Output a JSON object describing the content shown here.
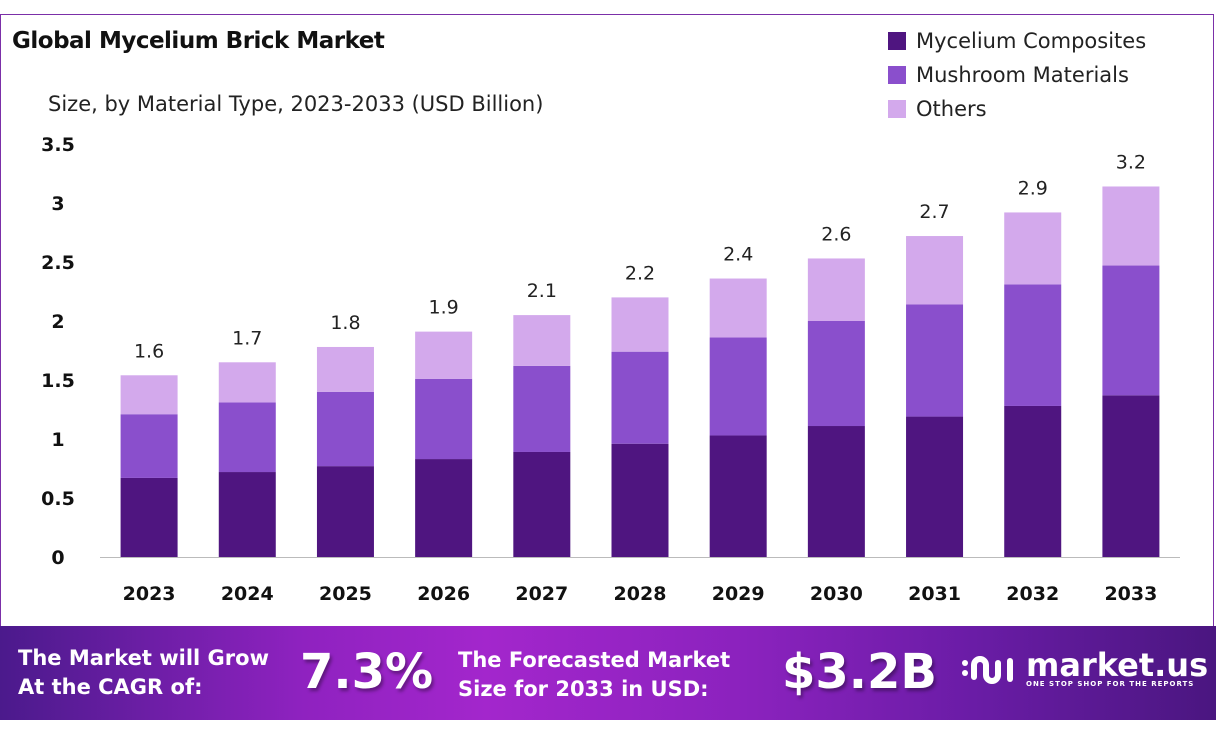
{
  "chart_data": {
    "type": "bar",
    "stacked": true,
    "title": "Global Mycelium Brick Market",
    "subtitle": "Size, by Material Type, 2023-2033 (USD Billion)",
    "categories": [
      "2023",
      "2024",
      "2025",
      "2026",
      "2027",
      "2028",
      "2029",
      "2030",
      "2031",
      "2032",
      "2033"
    ],
    "series": [
      {
        "name": "Mycelium Composites",
        "color": "#4f1580",
        "values": [
          0.67,
          0.72,
          0.77,
          0.83,
          0.89,
          0.96,
          1.03,
          1.11,
          1.19,
          1.28,
          1.37
        ]
      },
      {
        "name": "Mushroom Materials",
        "color": "#8a4fcc",
        "values": [
          0.54,
          0.59,
          0.63,
          0.68,
          0.73,
          0.78,
          0.83,
          0.89,
          0.95,
          1.03,
          1.1
        ]
      },
      {
        "name": "Others",
        "color": "#d3a9ec",
        "values": [
          0.33,
          0.34,
          0.38,
          0.4,
          0.43,
          0.46,
          0.5,
          0.53,
          0.58,
          0.61,
          0.67
        ]
      }
    ],
    "totals_labels": [
      "1.6",
      "1.7",
      "1.8",
      "1.9",
      "2.1",
      "2.2",
      "2.4",
      "2.6",
      "2.7",
      "2.9",
      "3.2"
    ],
    "y_ticks": [
      "0",
      "0.5",
      "1",
      "1.5",
      "2",
      "2.5",
      "3",
      "3.5"
    ],
    "ylim": [
      0,
      3.5
    ],
    "grid": false,
    "legend_position": "top-right"
  },
  "footer": {
    "cagr_text_1": "The Market will Grow",
    "cagr_text_2": "At the CAGR of:",
    "cagr_value": "7.3%",
    "forecast_text_1": "The Forecasted Market",
    "forecast_text_2": "Size for 2033 in USD:",
    "forecast_value": "$3.2B",
    "logo_name": "market.us",
    "logo_tagline": "ONE STOP SHOP FOR THE REPORTS"
  }
}
